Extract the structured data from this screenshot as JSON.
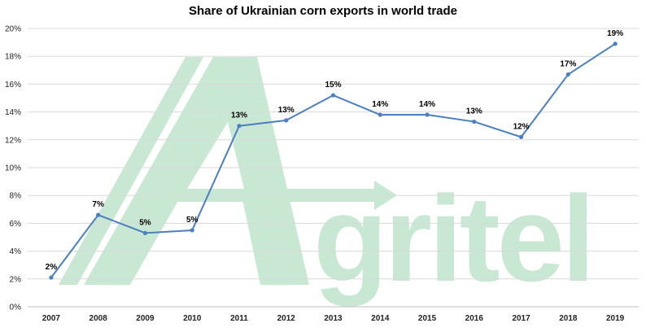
{
  "chart_data": {
    "type": "line",
    "title": "Share of Ukrainian corn exports in world trade",
    "xlabel": "",
    "ylabel": "",
    "categories": [
      "2007",
      "2008",
      "2009",
      "2010",
      "2011",
      "2012",
      "2013",
      "2014",
      "2015",
      "2016",
      "2017",
      "2018",
      "2019"
    ],
    "series": [
      {
        "values": [
          2.1,
          6.6,
          5.3,
          5.5,
          13.0,
          13.4,
          15.2,
          13.8,
          13.8,
          13.3,
          12.2,
          16.7,
          18.9
        ],
        "data_labels": [
          "2%",
          "7%",
          "5%",
          "5%",
          "13%",
          "13%",
          "15%",
          "14%",
          "14%",
          "13%",
          "12%",
          "17%",
          "19%"
        ],
        "color": "#4a7fc1"
      }
    ],
    "ylim": [
      0,
      20
    ],
    "yticks": [
      0,
      2,
      4,
      6,
      8,
      10,
      12,
      14,
      16,
      18,
      20
    ],
    "ytick_labels": [
      "0%",
      "2%",
      "4%",
      "6%",
      "8%",
      "10%",
      "12%",
      "14%",
      "16%",
      "18%",
      "20%"
    ],
    "grid": "horizontal",
    "legend": "none"
  },
  "watermark": {
    "text": "Agritel",
    "color": "#c9e8d3"
  }
}
